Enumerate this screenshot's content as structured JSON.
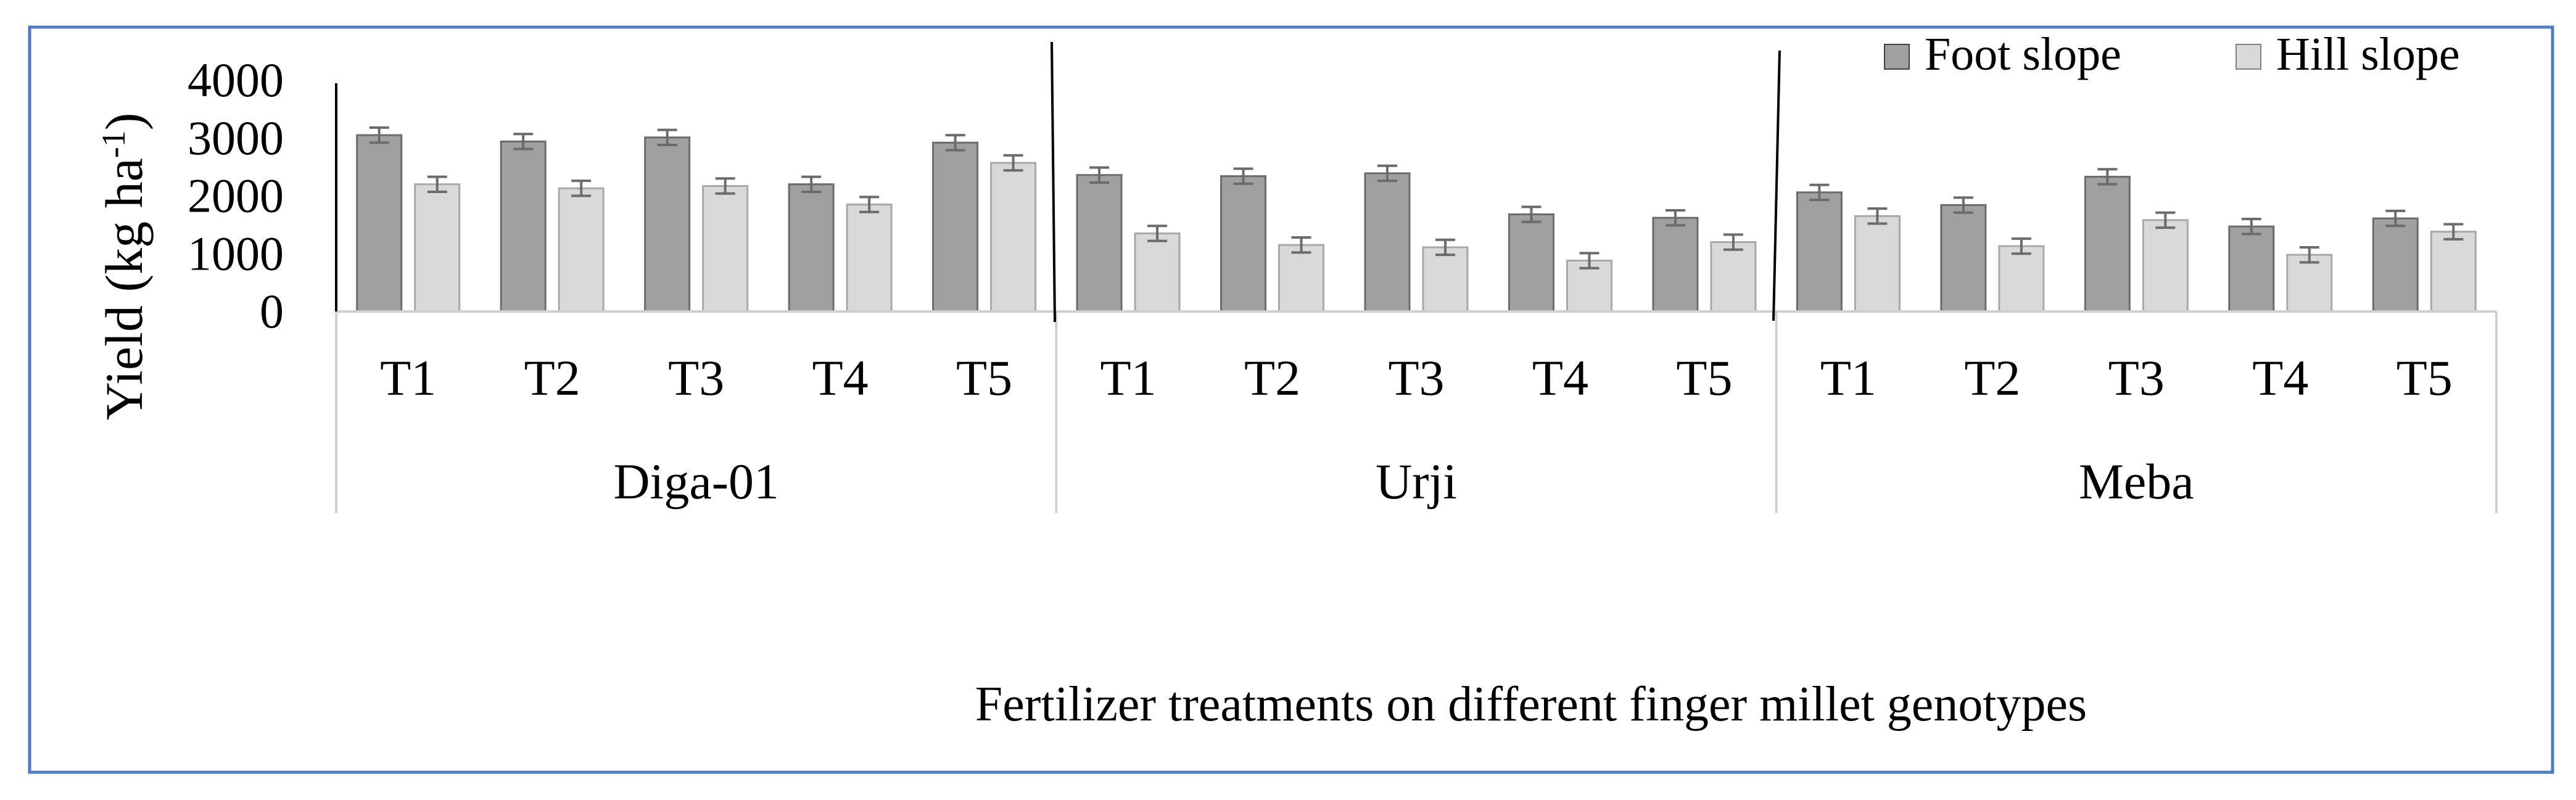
{
  "chart_data": {
    "type": "bar",
    "ylabel": "Yield (kg ha",
    "ylabel_sup": "-1",
    "ylabel_close": ")",
    "xlabel": "Fertilizer treatments on different finger millet genotypes",
    "ylim": [
      0,
      4000
    ],
    "yticks": [
      "0",
      "1000",
      "2000",
      "3000",
      "4000"
    ],
    "ytick_values": [
      0,
      1000,
      2000,
      3000,
      4000
    ],
    "grid": false,
    "legend_position": "top-right",
    "groups": [
      {
        "name": "Diga-01",
        "categories": [
          "T1",
          "T2",
          "T3",
          "T4",
          "T5"
        ]
      },
      {
        "name": "Urji",
        "categories": [
          "T1",
          "T2",
          "T3",
          "T4",
          "T5"
        ]
      },
      {
        "name": "Meba",
        "categories": [
          "T1",
          "T2",
          "T3",
          "T4",
          "T5"
        ]
      }
    ],
    "series": [
      {
        "name": "Foot slope",
        "color": "#a0a0a0",
        "values": [
          3050,
          2940,
          3010,
          2200,
          2920,
          2360,
          2340,
          2390,
          1680,
          1620,
          2060,
          1840,
          2330,
          1470,
          1610
        ],
        "errors": [
          130,
          130,
          130,
          130,
          130,
          130,
          130,
          130,
          130,
          130,
          130,
          130,
          130,
          130,
          130
        ]
      },
      {
        "name": "Hill slope",
        "color": "#d9d9d9",
        "values": [
          2200,
          2130,
          2170,
          1850,
          2570,
          1350,
          1150,
          1110,
          880,
          1200,
          1650,
          1130,
          1580,
          980,
          1380
        ],
        "errors": [
          130,
          130,
          130,
          130,
          130,
          130,
          130,
          130,
          130,
          130,
          130,
          130,
          130,
          130,
          130
        ]
      }
    ]
  }
}
